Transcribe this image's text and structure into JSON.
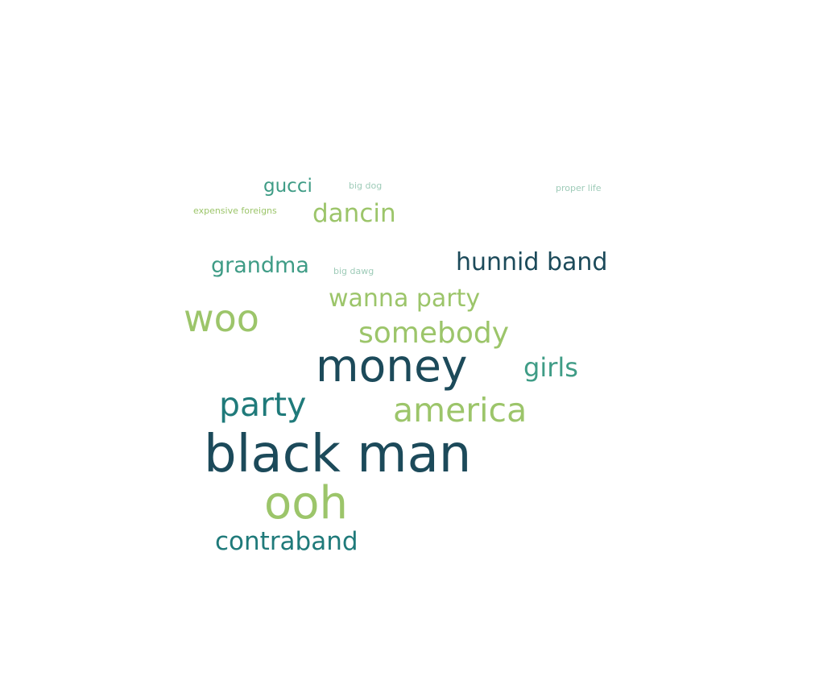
{
  "word_cloud": {
    "words": {
      "black_man": "black man",
      "money": "money",
      "ooh": "ooh",
      "woo": "woo",
      "party": "party",
      "america": "america",
      "somebody": "somebody",
      "hunnid_band": "hunnid band",
      "contraband": "contraband",
      "wanna_party": "wanna party",
      "dancin": "dancin",
      "girls": "girls",
      "grandma": "grandma",
      "gucci": "gucci",
      "expensive_foreigns": "expensive foreigns",
      "big_dog": "big dog",
      "big_dawg": "big dawg",
      "proper_life": "proper life"
    },
    "colors": {
      "navy": "#1c4a5a",
      "teal": "#1f7a7a",
      "sea": "#3f9c86",
      "green": "#9cc56a",
      "mint": "#9ecbb8"
    }
  }
}
